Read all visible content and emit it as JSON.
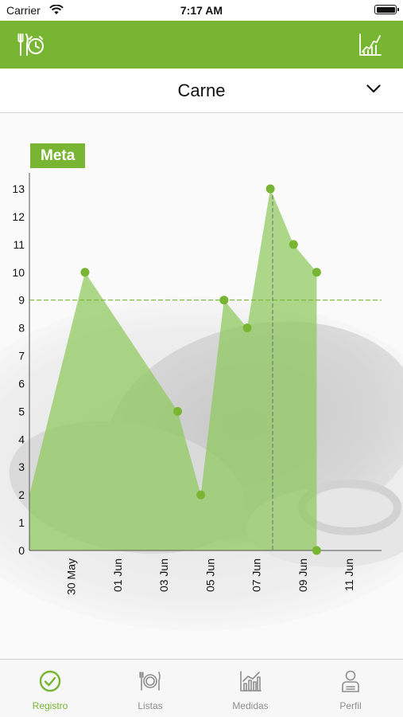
{
  "status_bar": {
    "carrier": "Carrier",
    "time": "7:17 AM"
  },
  "nav": {
    "left_icon": "meal-clock-icon",
    "right_icon": "growth-chart-icon"
  },
  "category": {
    "selected": "Carne",
    "icon": "chevron-down-icon"
  },
  "badge": {
    "label": "Meta"
  },
  "colors": {
    "accent": "#77b532",
    "area_fill": "#8dc95c",
    "goal_line": "#77b532",
    "tab_inactive": "#8e8e8e"
  },
  "chart_data": {
    "type": "area",
    "x_tick_labels": [
      "30 May",
      "01 Jun",
      "03 Jun",
      "05 Jun",
      "07 Jun",
      "09 Jun",
      "11 Jun"
    ],
    "x_ticks_days": [
      0,
      2,
      4,
      6,
      8,
      10,
      12
    ],
    "y_ticks": [
      0,
      1,
      2,
      3,
      4,
      5,
      6,
      7,
      8,
      9,
      10,
      11,
      12,
      13
    ],
    "ylim": [
      0,
      13
    ],
    "xlim_days": [
      -1.8,
      13.4
    ],
    "goal": 9,
    "cursor_day": 8.7,
    "series": [
      {
        "points": [
          {
            "day": 0.6,
            "value": 10
          },
          {
            "day": 4.6,
            "value": 5
          },
          {
            "day": 5.6,
            "value": 2
          },
          {
            "day": 6.6,
            "value": 9
          },
          {
            "day": 7.6,
            "value": 8
          },
          {
            "day": 8.6,
            "value": 13
          },
          {
            "day": 9.6,
            "value": 11
          },
          {
            "day": 10.6,
            "value": 10
          },
          {
            "day": 10.6,
            "value": 0
          }
        ]
      }
    ]
  },
  "tabs": [
    {
      "label": "Registro",
      "icon": "check-circle-icon",
      "active": true
    },
    {
      "label": "Listas",
      "icon": "plate-cutlery-icon",
      "active": false
    },
    {
      "label": "Medidas",
      "icon": "bar-chart-icon",
      "active": false
    },
    {
      "label": "Perfil",
      "icon": "user-icon",
      "active": false
    }
  ]
}
